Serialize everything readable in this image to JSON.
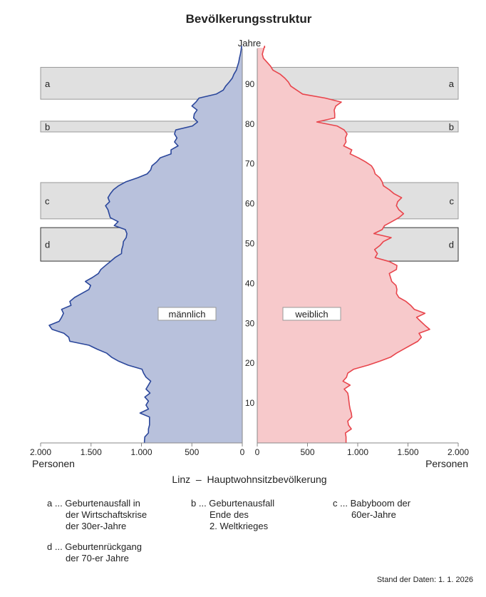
{
  "chart_data": {
    "type": "population-pyramid",
    "title": "Bevölkerungsstruktur",
    "subtitle": "Linz  –  Hauptwohnsitzbevölkerung",
    "y_axis_label": "Jahre",
    "x_axis_label": "Personen",
    "x_ticks": [
      "2.000",
      "1.500",
      "1.000",
      "500",
      "0"
    ],
    "x_tick_values": [
      2000,
      1500,
      1000,
      500,
      0
    ],
    "y_ticks": [
      10,
      20,
      30,
      40,
      50,
      60,
      70,
      80,
      90
    ],
    "xlim": [
      0,
      2000
    ],
    "ylim": [
      0,
      99
    ],
    "colors": {
      "male_fill": "#b8c1dc",
      "male_line": "#2b479b",
      "female_fill": "#f7c9cb",
      "female_line": "#e8454c",
      "box_fill": "#e0e0e0",
      "box_stroke": "#999999"
    },
    "series": [
      {
        "name": "männlich",
        "side": "left",
        "values": [
          970,
          967,
          931,
          931,
          920,
          920,
          920,
          1014,
          931,
          955,
          931,
          967,
          915,
          955,
          931,
          908,
          955,
          979,
          995,
          1132,
          1226,
          1297,
          1344,
          1438,
          1521,
          1710,
          1721,
          1769,
          1886,
          1915,
          1816,
          1792,
          1773,
          1792,
          1698,
          1710,
          1663,
          1592,
          1521,
          1504,
          1556,
          1486,
          1427,
          1403,
          1356,
          1309,
          1262,
          1198,
          1196,
          1184,
          1179,
          1151,
          1144,
          1160,
          1270,
          1231,
          1309,
          1321,
          1332,
          1356,
          1316,
          1332,
          1309,
          1278,
          1226,
          1155,
          1038,
          943,
          908,
          896,
          849,
          814,
          707,
          707,
          637,
          672,
          648,
          672,
          660,
          495,
          443,
          483,
          476,
          448,
          500,
          460,
          429,
          259,
          189,
          165,
          130,
          99,
          83,
          59,
          47,
          35,
          28,
          19,
          12,
          7
        ]
      },
      {
        "name": "weiblich",
        "side": "right",
        "values": [
          884,
          884,
          877,
          936,
          908,
          901,
          941,
          936,
          924,
          917,
          912,
          908,
          901,
          865,
          924,
          853,
          889,
          901,
          960,
          1102,
          1220,
          1326,
          1385,
          1456,
          1527,
          1598,
          1633,
          1610,
          1716,
          1669,
          1626,
          1586,
          1669,
          1563,
          1527,
          1480,
          1409,
          1385,
          1390,
          1381,
          1338,
          1326,
          1314,
          1385,
          1390,
          1314,
          1173,
          1196,
          1168,
          1220,
          1255,
          1333,
          1161,
          1243,
          1267,
          1338,
          1409,
          1456,
          1409,
          1385,
          1397,
          1437,
          1362,
          1314,
          1255,
          1243,
          1220,
          1173,
          1161,
          1137,
          1078,
          1007,
          924,
          941,
          860,
          884,
          877,
          894,
          865,
          794,
          593,
          771,
          771,
          766,
          782,
          837,
          676,
          452,
          392,
          333,
          310,
          274,
          227,
          156,
          132,
          97,
          61,
          50,
          61,
          73
        ]
      }
    ],
    "annotations": [
      {
        "label": "a",
        "age_from": 86.2,
        "age_to": 94.2,
        "text": [
          "Geburtenausfall in",
          "der Wirtschaftskrise",
          "der 30er-Jahre"
        ]
      },
      {
        "label": "b",
        "age_from": 78.0,
        "age_to": 80.7,
        "text": [
          "Geburtenausfall",
          "Ende des",
          "2. Weltkrieges"
        ]
      },
      {
        "label": "c",
        "age_from": 56.2,
        "age_to": 65.3,
        "text": [
          "Babyboom der",
          "60er-Jahre"
        ]
      },
      {
        "label": "d",
        "age_from": 45.6,
        "age_to": 54.0,
        "text": [
          "Geburtenrückgang",
          "der 70-er Jahre"
        ]
      }
    ],
    "note_separator": "...",
    "footer": "Stand der Daten: 1. 1. 2026"
  }
}
